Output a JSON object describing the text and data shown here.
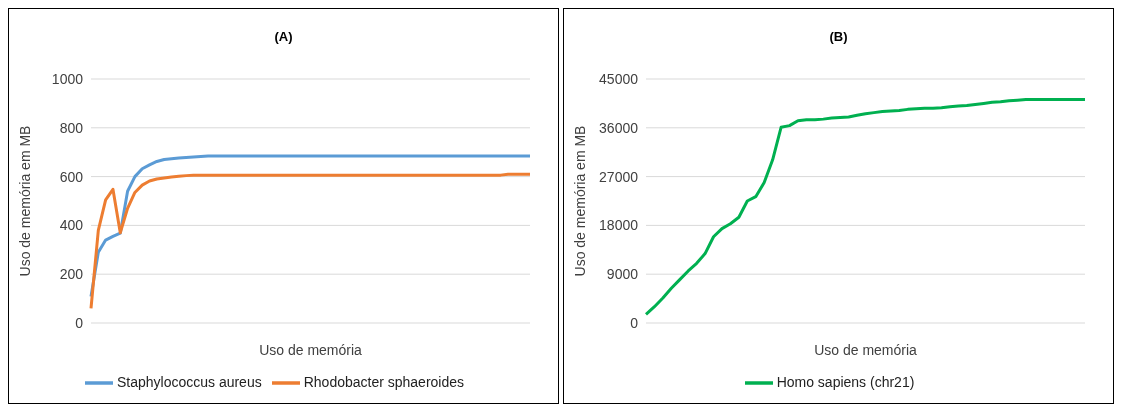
{
  "chart_data": [
    {
      "type": "line",
      "title": "(A)",
      "xlabel": "Uso de memória",
      "ylabel": "Uso de memória em MB",
      "categories": [
        null,
        null,
        null,
        null,
        null,
        null,
        null,
        null,
        null,
        null,
        null,
        null,
        null,
        null,
        null,
        null,
        null,
        null,
        null,
        null,
        null,
        null,
        null,
        null,
        null,
        null,
        null,
        null,
        null,
        null,
        null,
        null,
        null,
        null,
        null,
        null,
        null,
        null,
        null,
        null,
        null,
        null,
        null,
        null,
        null,
        null,
        null,
        null,
        null,
        null,
        null,
        null,
        null,
        null,
        null,
        null,
        null,
        null,
        null,
        null,
        null
      ],
      "series": [
        {
          "name": "Staphylococcus aureus",
          "color": "#5b9bd5",
          "values": [
            109,
            290,
            340,
            355,
            368,
            540,
            600,
            632,
            648,
            662,
            670,
            673,
            676,
            678,
            680,
            682,
            684,
            684,
            684,
            684,
            684,
            684,
            684,
            684,
            684,
            684,
            684,
            684,
            684,
            684,
            684,
            684,
            684,
            684,
            684,
            684,
            684,
            684,
            684,
            684,
            684,
            684,
            684,
            684,
            684,
            684,
            684,
            684,
            684,
            684,
            684,
            684,
            684,
            684,
            684,
            684,
            684,
            684,
            684,
            684,
            684
          ]
        },
        {
          "name": "Rhodobacter sphaeroides",
          "color": "#ed7d31",
          "values": [
            60,
            380,
            505,
            548,
            370,
            470,
            535,
            565,
            582,
            590,
            594,
            598,
            601,
            604,
            606,
            606,
            606,
            606,
            606,
            606,
            606,
            606,
            606,
            606,
            606,
            606,
            606,
            606,
            606,
            606,
            606,
            606,
            606,
            606,
            606,
            606,
            606,
            606,
            606,
            606,
            606,
            606,
            606,
            606,
            606,
            606,
            606,
            606,
            606,
            606,
            606,
            606,
            606,
            606,
            606,
            606,
            606,
            610,
            610,
            610,
            610
          ]
        }
      ],
      "ylim": [
        0,
        1000
      ],
      "yticks": [
        0,
        200,
        400,
        600,
        800,
        1000
      ],
      "grid": "y",
      "legend": "bottom",
      "marker": "none",
      "line_style": "solid"
    },
    {
      "type": "line",
      "title": "(B)",
      "xlabel": "Uso de memória",
      "ylabel": "Uso de memória em MB",
      "categories": [
        null,
        null,
        null,
        null,
        null,
        null,
        null,
        null,
        null,
        null,
        null,
        null,
        null,
        null,
        null,
        null,
        null,
        null,
        null,
        null,
        null,
        null,
        null,
        null,
        null,
        null,
        null,
        null,
        null,
        null,
        null,
        null,
        null,
        null,
        null,
        null,
        null,
        null,
        null,
        null,
        null,
        null,
        null,
        null,
        null,
        null,
        null,
        null,
        null,
        null,
        null,
        null,
        null
      ],
      "series": [
        {
          "name": "Homo sapiens (chr21)",
          "color": "#00b050",
          "values": [
            1600,
            3000,
            4600,
            6400,
            8000,
            9600,
            11000,
            12800,
            15900,
            17400,
            18300,
            19500,
            22500,
            23300,
            25900,
            30100,
            36100,
            36400,
            37300,
            37500,
            37500,
            37600,
            37800,
            37900,
            38000,
            38300,
            38600,
            38800,
            39000,
            39100,
            39200,
            39400,
            39500,
            39600,
            39600,
            39700,
            39900,
            40000,
            40100,
            40300,
            40500,
            40700,
            40800,
            41000,
            41100,
            41200,
            41200,
            41200,
            41200,
            41200,
            41200,
            41200,
            41200
          ]
        }
      ],
      "ylim": [
        0,
        45000
      ],
      "yticks": [
        0,
        9000,
        18000,
        27000,
        36000,
        45000
      ],
      "grid": "y",
      "legend": "bottom",
      "marker": "none",
      "line_style": "solid"
    }
  ]
}
